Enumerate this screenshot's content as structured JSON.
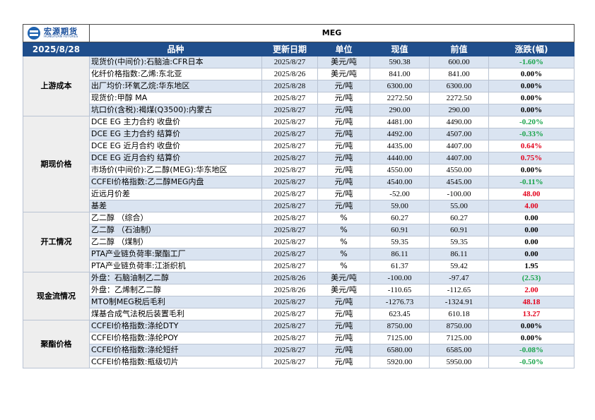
{
  "title": "MEG",
  "date": "2025/8/28",
  "logo": {
    "cn": "宏源期货",
    "en": "HONGYUAN FUTURES"
  },
  "headers": {
    "name": "品种",
    "updated": "更新日期",
    "unit": "单位",
    "current": "现值",
    "previous": "前值",
    "change": "涨跌(幅)"
  },
  "sections": [
    {
      "category": "上游成本",
      "rows": [
        {
          "name": "现货价(中间价):石脑油:CFR日本",
          "date": "2025/8/27",
          "unit": "美元/吨",
          "current": "590.38",
          "previous": "600.00",
          "change": "-1.60%",
          "dir": "neg",
          "shade": true
        },
        {
          "name": "化纤价格指数:乙烯:东北亚",
          "date": "2025/8/26",
          "unit": "美元/吨",
          "current": "841.00",
          "previous": "841.00",
          "change": "0.00%",
          "dir": "flat",
          "shade": false
        },
        {
          "name": "出厂均价:环氧乙烷:华东地区",
          "date": "2025/8/28",
          "unit": "元/吨",
          "current": "6300.00",
          "previous": "6300.00",
          "change": "0.00%",
          "dir": "flat",
          "shade": true
        },
        {
          "name": "现货价:甲醇 MA",
          "date": "2025/8/27",
          "unit": "元/吨",
          "current": "2272.50",
          "previous": "2272.50",
          "change": "0.00%",
          "dir": "flat",
          "shade": false
        },
        {
          "name": "坑口价(含税):褐煤(Q3500):内蒙古",
          "date": "2025/8/27",
          "unit": "元/吨",
          "current": "290.00",
          "previous": "290.00",
          "change": "0.00%",
          "dir": "flat",
          "shade": true
        }
      ]
    },
    {
      "category": "期现价格",
      "rows": [
        {
          "name": "DCE EG 主力合约 收盘价",
          "date": "2025/8/27",
          "unit": "元/吨",
          "current": "4481.00",
          "previous": "4490.00",
          "change": "-0.20%",
          "dir": "neg",
          "shade": false
        },
        {
          "name": "DCE EG 主力合约 结算价",
          "date": "2025/8/27",
          "unit": "元/吨",
          "current": "4492.00",
          "previous": "4507.00",
          "change": "-0.33%",
          "dir": "neg",
          "shade": true
        },
        {
          "name": "DCE EG 近月合约 收盘价",
          "date": "2025/8/27",
          "unit": "元/吨",
          "current": "4435.00",
          "previous": "4407.00",
          "change": "0.64%",
          "dir": "pos",
          "shade": false
        },
        {
          "name": "DCE EG 近月合约 结算价",
          "date": "2025/8/27",
          "unit": "元/吨",
          "current": "4440.00",
          "previous": "4407.00",
          "change": "0.75%",
          "dir": "pos",
          "shade": true
        },
        {
          "name": "市场价(中间价):乙二醇(MEG):华东地区",
          "date": "2025/8/27",
          "unit": "元/吨",
          "current": "4550.00",
          "previous": "4550.00",
          "change": "0.00%",
          "dir": "flat",
          "shade": false
        },
        {
          "name": "CCFEI价格指数:乙二醇MEG内盘",
          "date": "2025/8/27",
          "unit": "元/吨",
          "current": "4540.00",
          "previous": "4545.00",
          "change": "-0.11%",
          "dir": "neg",
          "shade": true
        },
        {
          "name": "近远月价差",
          "date": "2025/8/27",
          "unit": "元/吨",
          "current": "-52.00",
          "previous": "-100.00",
          "change": "48.00",
          "dir": "pos",
          "shade": false
        },
        {
          "name": "基差",
          "date": "2025/8/27",
          "unit": "元/吨",
          "current": "59.00",
          "previous": "55.00",
          "change": "4.00",
          "dir": "pos",
          "shade": true
        }
      ]
    },
    {
      "category": "开工情况",
      "rows": [
        {
          "name": "乙二醇 （综合）",
          "date": "2025/8/27",
          "unit": "%",
          "current": "60.27",
          "previous": "60.27",
          "change": "0.00",
          "dir": "flat",
          "shade": false
        },
        {
          "name": "乙二醇 （石油制）",
          "date": "2025/8/27",
          "unit": "%",
          "current": "60.91",
          "previous": "60.91",
          "change": "0.00",
          "dir": "flat",
          "shade": true
        },
        {
          "name": "乙二醇 （煤制）",
          "date": "2025/8/27",
          "unit": "%",
          "current": "59.35",
          "previous": "59.35",
          "change": "0.00",
          "dir": "flat",
          "shade": false
        },
        {
          "name": "PTA产业链负荷率:聚酯工厂",
          "date": "2025/8/27",
          "unit": "%",
          "current": "86.11",
          "previous": "86.11",
          "change": "0.00",
          "dir": "flat",
          "shade": true
        },
        {
          "name": "PTA产业链负荷率:江浙织机",
          "date": "2025/8/27",
          "unit": "%",
          "current": "61.37",
          "previous": "59.42",
          "change": "1.95",
          "dir": "flat",
          "shade": false
        }
      ]
    },
    {
      "category": "现金流情况",
      "rows": [
        {
          "name": "外盘：石脑油制乙二醇",
          "date": "2025/8/26",
          "unit": "美元/吨",
          "current": "-100.00",
          "previous": "-97.47",
          "change": "(2.53)",
          "dir": "neg",
          "shade": true
        },
        {
          "name": "外盘：乙烯制乙二醇",
          "date": "2025/8/26",
          "unit": "美元/吨",
          "current": "-110.65",
          "previous": "-112.65",
          "change": "2.00",
          "dir": "pos",
          "shade": false
        },
        {
          "name": "MTO制MEG税后毛利",
          "date": "2025/8/27",
          "unit": "元/吨",
          "current": "-1276.73",
          "previous": "-1324.91",
          "change": "48.18",
          "dir": "pos",
          "shade": true
        },
        {
          "name": "煤基合成气法税后装置毛利",
          "date": "2025/8/27",
          "unit": "元/吨",
          "current": "623.45",
          "previous": "610.18",
          "change": "13.27",
          "dir": "pos",
          "shade": false
        }
      ]
    },
    {
      "category": "聚酯价格",
      "rows": [
        {
          "name": "CCFEI价格指数:涤纶DTY",
          "date": "2025/8/27",
          "unit": "元/吨",
          "current": "8750.00",
          "previous": "8750.00",
          "change": "0.00%",
          "dir": "flat",
          "shade": true
        },
        {
          "name": "CCFEI价格指数:涤纶POY",
          "date": "2025/8/27",
          "unit": "元/吨",
          "current": "7125.00",
          "previous": "7125.00",
          "change": "0.00%",
          "dir": "flat",
          "shade": false
        },
        {
          "name": "CCFEI价格指数:涤纶短纤",
          "date": "2025/8/27",
          "unit": "元/吨",
          "current": "6580.00",
          "previous": "6585.00",
          "change": "-0.08%",
          "dir": "neg",
          "shade": true
        },
        {
          "name": "CCFEI价格指数:瓶级切片",
          "date": "2025/8/27",
          "unit": "元/吨",
          "current": "5920.00",
          "previous": "5950.00",
          "change": "-0.50%",
          "dir": "neg",
          "shade": false
        }
      ]
    }
  ]
}
